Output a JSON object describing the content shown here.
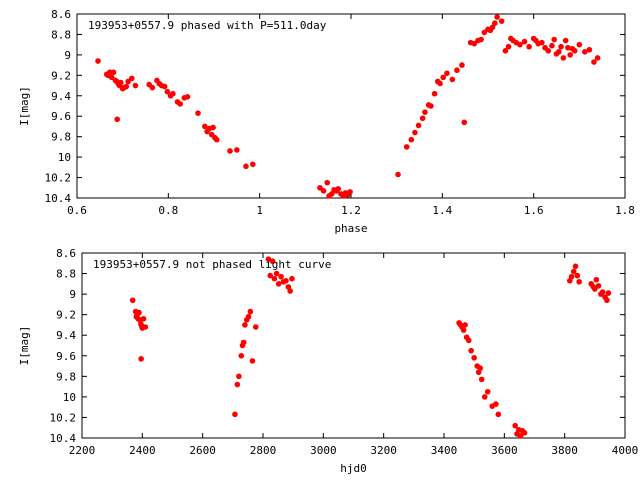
{
  "chart_data": [
    {
      "type": "scatter",
      "title": "193953+0557.9 phased with P=511.0day",
      "xlabel": "phase",
      "ylabel": "I[mag]",
      "xlim": [
        0.6,
        1.8
      ],
      "ylim": [
        10.4,
        8.6
      ],
      "y_inverted": true,
      "xticks": [
        "0.6",
        "0.8",
        "1",
        "1.2",
        "1.4",
        "1.6",
        "1.8"
      ],
      "yticks": [
        "8.6",
        "8.8",
        "9",
        "9.2",
        "9.4",
        "9.6",
        "9.8",
        "10",
        "10.2",
        "10.4"
      ],
      "marker": "filled-circle",
      "color": "#ff0000",
      "series": [
        {
          "name": "",
          "x": [
            0.646,
            0.665,
            0.668,
            0.672,
            0.676,
            0.68,
            0.684,
            0.687,
            0.69,
            0.693,
            0.696,
            0.7,
            0.703,
            0.708,
            0.712,
            0.72,
            0.728,
            0.688,
            0.758,
            0.765,
            0.775,
            0.78,
            0.785,
            0.792,
            0.798,
            0.805,
            0.81,
            0.82,
            0.826,
            0.835,
            0.842,
            0.865,
            0.88,
            0.885,
            0.89,
            0.895,
            0.898,
            0.902,
            0.906,
            0.935,
            0.95,
            0.97,
            0.985,
            1.132,
            1.14,
            1.148,
            1.152,
            1.158,
            1.163,
            1.168,
            1.172,
            1.178,
            1.183,
            1.188,
            1.193,
            1.198,
            1.303,
            1.322,
            1.332,
            1.34,
            1.348,
            1.357,
            1.362,
            1.37,
            1.375,
            1.383,
            1.39,
            1.395,
            1.402,
            1.41,
            1.422,
            1.432,
            1.443,
            1.448,
            1.462,
            1.47,
            1.478,
            1.485,
            1.492,
            1.5,
            1.505,
            1.51,
            1.515,
            1.52,
            1.53,
            1.538,
            1.545,
            1.55,
            1.555,
            1.562,
            1.57,
            1.58,
            1.59,
            1.6,
            1.605,
            1.61,
            1.618,
            1.625,
            1.632,
            1.64,
            1.645,
            1.65,
            1.655,
            1.66,
            1.665,
            1.67,
            1.675,
            1.68,
            1.685,
            1.69,
            1.7,
            1.712,
            1.722,
            1.732,
            1.74
          ],
          "y": [
            9.06,
            9.19,
            9.2,
            9.17,
            9.22,
            9.17,
            9.25,
            9.26,
            9.28,
            9.3,
            9.27,
            9.33,
            9.32,
            9.31,
            9.26,
            9.23,
            9.3,
            9.63,
            9.29,
            9.32,
            9.25,
            9.28,
            9.3,
            9.31,
            9.36,
            9.4,
            9.38,
            9.46,
            9.48,
            9.42,
            9.41,
            9.57,
            9.7,
            9.75,
            9.72,
            9.78,
            9.71,
            9.81,
            9.83,
            9.94,
            9.93,
            10.09,
            10.07,
            10.3,
            10.33,
            10.25,
            10.38,
            10.36,
            10.32,
            10.33,
            10.31,
            10.36,
            10.38,
            10.35,
            10.37,
            10.34,
            10.17,
            9.9,
            9.83,
            9.76,
            9.69,
            9.62,
            9.56,
            9.49,
            9.5,
            9.38,
            9.26,
            9.28,
            9.22,
            9.18,
            9.24,
            9.15,
            9.1,
            9.66,
            8.88,
            8.89,
            8.86,
            8.85,
            8.78,
            8.75,
            8.76,
            8.73,
            8.69,
            8.63,
            8.67,
            8.96,
            8.92,
            8.84,
            8.86,
            8.88,
            8.9,
            8.87,
            8.92,
            8.84,
            8.86,
            8.89,
            8.88,
            8.93,
            8.96,
            8.91,
            8.85,
            8.99,
            8.97,
            8.92,
            9.03,
            8.86,
            8.93,
            9.0,
            8.94,
            8.96,
            8.9,
            8.97,
            8.95,
            9.07,
            9.03
          ]
        }
      ]
    },
    {
      "type": "scatter",
      "title": "193953+0557.9 not phased light curve",
      "xlabel": "hjd0",
      "ylabel": "I[mag]",
      "xlim": [
        2200,
        4000
      ],
      "ylim": [
        10.4,
        8.6
      ],
      "y_inverted": true,
      "xticks": [
        "2200",
        "2400",
        "2600",
        "2800",
        "3000",
        "3200",
        "3400",
        "3600",
        "3800",
        "4000"
      ],
      "yticks": [
        "8.6",
        "8.8",
        "9",
        "9.2",
        "9.4",
        "9.6",
        "9.8",
        "10",
        "10.2",
        "10.4"
      ],
      "marker": "filled-circle",
      "color": "#ff0000",
      "series": [
        {
          "name": "",
          "x": [
            2368,
            2378,
            2380,
            2383,
            2386,
            2389,
            2392,
            2395,
            2398,
            2400,
            2404,
            2410,
            2396,
            2707,
            2715,
            2720,
            2728,
            2732,
            2736,
            2740,
            2746,
            2752,
            2758,
            2765,
            2776,
            2818,
            2824,
            2832,
            2838,
            2845,
            2852,
            2860,
            2868,
            2876,
            2884,
            2890,
            2896,
            3450,
            3455,
            3460,
            3465,
            3470,
            3475,
            3482,
            3490,
            3500,
            3510,
            3515,
            3520,
            3525,
            3535,
            3545,
            3560,
            3572,
            3580,
            3636,
            3642,
            3648,
            3654,
            3660,
            3667,
            3817,
            3823,
            3830,
            3836,
            3842,
            3848,
            3888,
            3895,
            3900,
            3905,
            3912,
            3920,
            3926,
            3934,
            3940,
            3945
          ],
          "y": [
            9.06,
            9.17,
            9.22,
            9.2,
            9.24,
            9.18,
            9.25,
            9.29,
            9.31,
            9.33,
            9.24,
            9.32,
            9.63,
            10.17,
            9.88,
            9.8,
            9.6,
            9.5,
            9.47,
            9.3,
            9.25,
            9.22,
            9.17,
            9.65,
            9.32,
            8.66,
            8.82,
            8.68,
            8.85,
            8.8,
            8.9,
            8.83,
            8.88,
            8.87,
            8.93,
            8.97,
            8.85,
            9.28,
            9.3,
            9.32,
            9.35,
            9.3,
            9.42,
            9.45,
            9.55,
            9.62,
            9.7,
            9.76,
            9.72,
            9.83,
            10.0,
            9.95,
            10.09,
            10.07,
            10.17,
            10.28,
            10.36,
            10.32,
            10.38,
            10.33,
            10.35,
            8.87,
            8.83,
            8.78,
            8.73,
            8.82,
            8.88,
            8.9,
            8.93,
            8.95,
            8.86,
            8.92,
            9.0,
            8.98,
            9.03,
            9.06,
            8.99
          ]
        }
      ]
    }
  ]
}
